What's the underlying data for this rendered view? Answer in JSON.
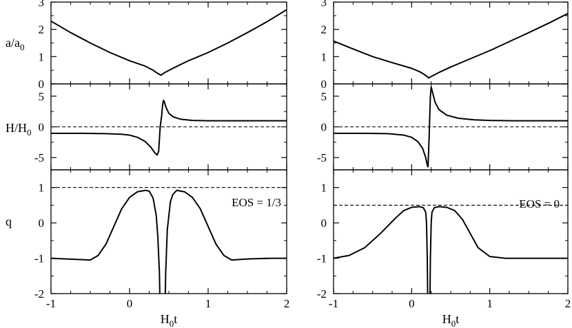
{
  "chart_data": [
    {
      "type": "line",
      "title": "",
      "annotation": "EOS = 1/3",
      "xlabel": "H",
      "xlabel_sub": "0",
      "xlabel_suffix": "t",
      "xlim": [
        -1,
        2
      ],
      "x_ticks": [
        "-1",
        "0",
        "1",
        "2"
      ],
      "t0": 0.4,
      "panels": [
        {
          "id": "a",
          "ylabel": "a/a",
          "ylabel_sub": "0",
          "ylim": [
            0,
            3
          ],
          "y_ticks": [
            "0",
            "1",
            "2",
            "3"
          ],
          "series": [
            {
              "name": "a/a0",
              "style": "solid",
              "x": [
                -1.0,
                -0.75,
                -0.5,
                -0.25,
                0.0,
                0.2,
                0.3,
                0.36,
                0.4,
                0.45,
                0.55,
                0.75,
                1.0,
                1.25,
                1.5,
                1.75,
                2.0
              ],
              "y": [
                2.3,
                1.88,
                1.5,
                1.15,
                0.85,
                0.65,
                0.5,
                0.38,
                0.32,
                0.42,
                0.57,
                0.85,
                1.15,
                1.5,
                1.88,
                2.28,
                2.72
              ]
            }
          ],
          "reference_line": null
        },
        {
          "id": "H",
          "ylabel": "H/H",
          "ylabel_sub": "0",
          "ylim": [
            -7,
            7
          ],
          "y_ticks": [
            "-5",
            "0",
            "5"
          ],
          "series": [
            {
              "name": "H/H0",
              "style": "solid",
              "x": [
                -1.0,
                -0.6,
                -0.3,
                -0.1,
                0.0,
                0.1,
                0.2,
                0.27,
                0.32,
                0.35,
                0.37,
                0.38,
                0.39,
                0.41,
                0.42,
                0.43,
                0.44,
                0.46,
                0.5,
                0.56,
                0.65,
                0.8,
                1.0,
                1.3,
                1.6,
                2.0
              ],
              "y": [
                -1.05,
                -1.05,
                -1.1,
                -1.2,
                -1.35,
                -1.7,
                -2.4,
                -3.3,
                -4.2,
                -4.6,
                -4.0,
                -2.0,
                0.0,
                2.0,
                3.5,
                4.3,
                4.2,
                3.3,
                2.2,
                1.6,
                1.25,
                1.05,
                1.0,
                1.0,
                1.0,
                1.0
              ]
            }
          ],
          "reference_line": 0
        },
        {
          "id": "q",
          "ylabel": "q",
          "ylabel_sub": "",
          "ylim": [
            -2,
            1.5
          ],
          "y_ticks": [
            "-2",
            "-1",
            "0",
            "1"
          ],
          "series": [
            {
              "name": "q",
              "style": "solid",
              "x": [
                -1.0,
                -0.7,
                -0.5,
                -0.4,
                -0.3,
                -0.2,
                -0.1,
                0.0,
                0.1,
                0.2,
                0.25,
                0.3,
                0.34,
                0.36,
                0.38,
                0.385,
                null,
                0.455,
                0.46,
                0.48,
                0.52,
                0.55,
                0.6,
                0.7,
                0.8,
                0.9,
                1.0,
                1.1,
                1.2,
                1.3,
                1.5,
                1.8,
                2.0
              ],
              "y": [
                -1.0,
                -1.03,
                -1.05,
                -0.92,
                -0.6,
                -0.1,
                0.4,
                0.72,
                0.88,
                0.92,
                0.9,
                0.7,
                0.2,
                -0.4,
                -1.4,
                -2.0,
                null,
                -2.0,
                -1.4,
                -0.2,
                0.6,
                0.8,
                0.92,
                0.88,
                0.72,
                0.4,
                -0.1,
                -0.6,
                -0.92,
                -1.05,
                -1.02,
                -1.0,
                -1.0
              ]
            }
          ],
          "reference_line": 1
        }
      ]
    },
    {
      "type": "line",
      "title": "",
      "annotation": "EOS = 0",
      "xlabel": "H",
      "xlabel_sub": "0",
      "xlabel_suffix": "t",
      "xlim": [
        -1,
        2
      ],
      "x_ticks": [
        "-1",
        "0",
        "1",
        "2"
      ],
      "t0": 0.22,
      "panels": [
        {
          "id": "a",
          "ylabel": "",
          "ylabel_sub": "",
          "ylim": [
            0,
            3
          ],
          "y_ticks": [
            "0",
            "1",
            "2",
            "3"
          ],
          "series": [
            {
              "name": "a/a0",
              "style": "solid",
              "x": [
                -1.0,
                -0.75,
                -0.5,
                -0.25,
                0.0,
                0.1,
                0.17,
                0.22,
                0.27,
                0.35,
                0.5,
                0.75,
                1.0,
                1.25,
                1.5,
                1.75,
                2.0
              ],
              "y": [
                1.57,
                1.28,
                1.0,
                0.78,
                0.57,
                0.45,
                0.33,
                0.22,
                0.3,
                0.42,
                0.62,
                0.92,
                1.22,
                1.55,
                1.88,
                2.22,
                2.58
              ]
            }
          ],
          "reference_line": null
        },
        {
          "id": "H",
          "ylabel": "",
          "ylabel_sub": "",
          "ylim": [
            -7,
            7
          ],
          "y_ticks": [
            "-5",
            "0",
            "5"
          ],
          "series": [
            {
              "name": "H/H0",
              "style": "solid",
              "x": [
                -1.0,
                -0.6,
                -0.3,
                -0.1,
                0.0,
                0.08,
                0.14,
                0.18,
                0.2,
                0.21,
                0.22,
                0.23,
                0.24,
                0.25,
                0.27,
                0.3,
                0.35,
                0.45,
                0.6,
                0.8,
                1.0,
                1.3,
                1.6,
                2.0
              ],
              "y": [
                -1.05,
                -1.05,
                -1.1,
                -1.35,
                -1.7,
                -2.4,
                -3.5,
                -5.0,
                -6.2,
                -6.5,
                -3.0,
                1.0,
                5.0,
                6.5,
                5.5,
                4.0,
                2.8,
                1.9,
                1.4,
                1.15,
                1.05,
                1.0,
                1.0,
                1.0
              ]
            }
          ],
          "reference_line": 0
        },
        {
          "id": "q",
          "ylabel": "",
          "ylabel_sub": "",
          "ylim": [
            -2,
            1.5
          ],
          "y_ticks": [
            "-2",
            "-1",
            "0",
            "1"
          ],
          "series": [
            {
              "name": "q",
              "style": "solid",
              "x": [
                -1.0,
                -0.8,
                -0.6,
                -0.4,
                -0.2,
                -0.1,
                0.0,
                0.1,
                0.15,
                0.18,
                0.19,
                0.2,
                0.205,
                null,
                0.235,
                0.24,
                0.25,
                0.26,
                0.29,
                0.35,
                0.45,
                0.55,
                0.65,
                0.75,
                0.85,
                1.0,
                1.2,
                1.5,
                2.0
              ],
              "y": [
                -1.0,
                -0.92,
                -0.7,
                -0.3,
                0.15,
                0.35,
                0.44,
                0.46,
                0.43,
                0.3,
                0.0,
                -1.0,
                -2.0,
                null,
                -2.0,
                -1.0,
                0.0,
                0.3,
                0.43,
                0.46,
                0.44,
                0.35,
                0.1,
                -0.3,
                -0.7,
                -0.95,
                -1.0,
                -1.0,
                -1.0
              ]
            }
          ],
          "reference_line": 0.5
        }
      ]
    }
  ]
}
